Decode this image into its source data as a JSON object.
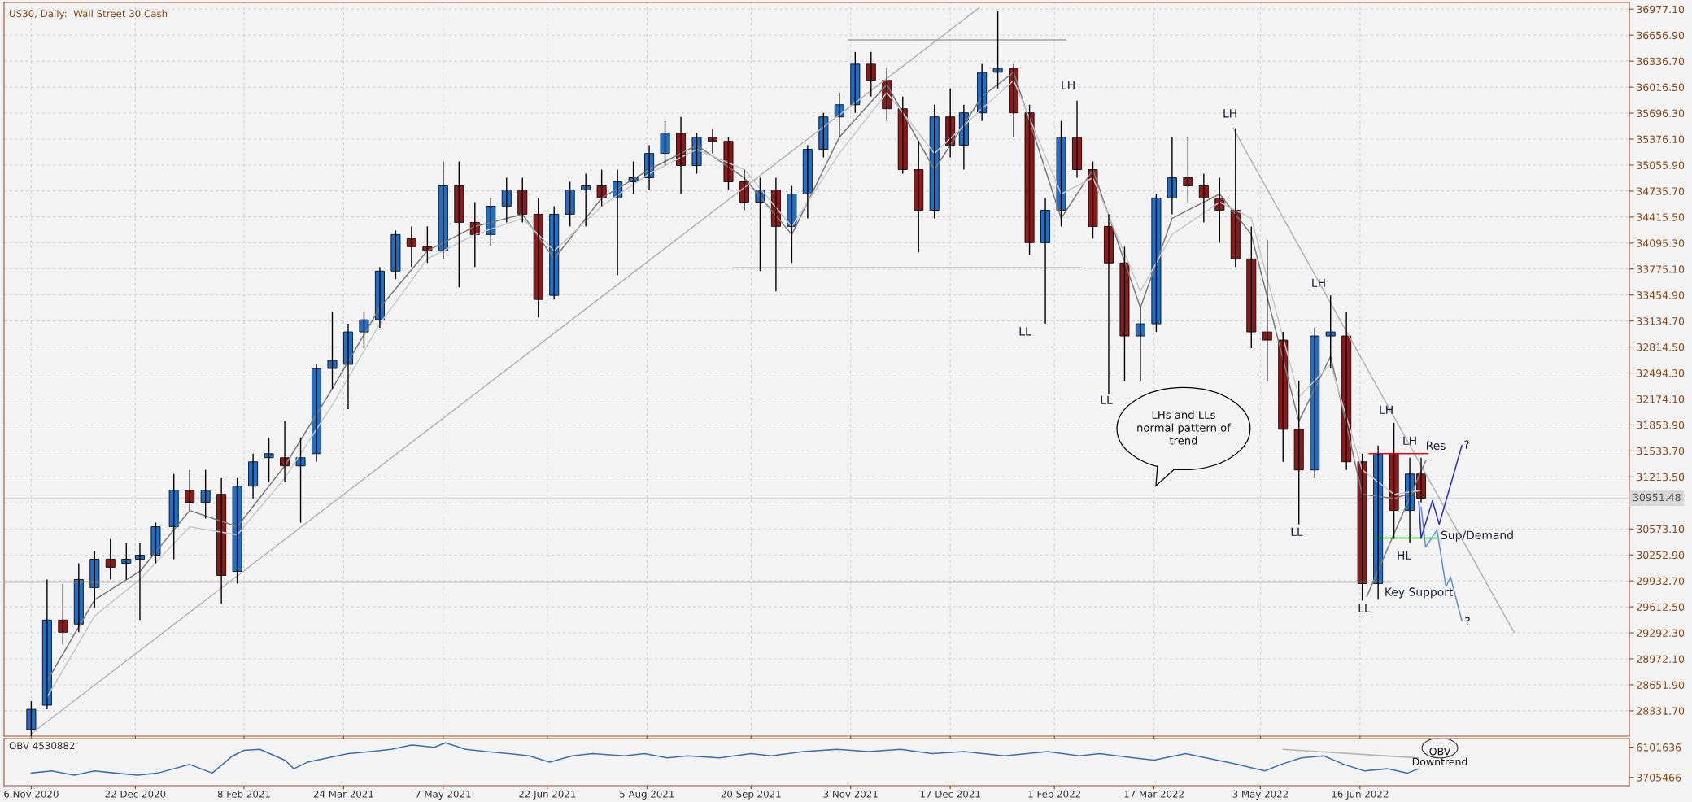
{
  "chart_data": [
    {
      "type": "candlestick",
      "title": "US30, Daily:  Wall Street 30 Cash",
      "xlim": [
        "2020-10-25",
        "2022-10-13"
      ],
      "xticks": [
        {
          "value": "2020-11-06",
          "label": null
        },
        {
          "value": "2020-12-22",
          "label": null
        },
        {
          "value": "2021-02-08",
          "label": null
        },
        {
          "value": "2021-03-24",
          "label": null
        },
        {
          "value": "2021-05-07",
          "label": null
        },
        {
          "value": "2021-06-22",
          "label": null
        },
        {
          "value": "2021-08-05",
          "label": null
        },
        {
          "value": "2021-09-20",
          "label": null
        },
        {
          "value": "2021-11-03",
          "label": null
        },
        {
          "value": "2021-12-17",
          "label": null
        },
        {
          "value": "2022-02-01",
          "label": null
        },
        {
          "value": "2022-03-17",
          "label": null
        },
        {
          "value": "2022-05-03",
          "label": null
        },
        {
          "value": "2022-06-16",
          "label": null
        }
      ],
      "ylim": [
        28020,
        37060
      ],
      "yticks": [
        {
          "value": 28331.7,
          "label": "28331.70"
        },
        {
          "value": 28651.9,
          "label": "28651.90"
        },
        {
          "value": 28972.1,
          "label": "28972.10"
        },
        {
          "value": 29292.3,
          "label": "29292.30"
        },
        {
          "value": 29612.5,
          "label": "29612.50"
        },
        {
          "value": 29932.7,
          "label": "29932.70"
        },
        {
          "value": 30252.9,
          "label": "30252.90"
        },
        {
          "value": 30573.1,
          "label": "30573.10"
        },
        {
          "value": 30893.3,
          "label": null
        },
        {
          "value": 31213.5,
          "label": "31213.50"
        },
        {
          "value": 31533.7,
          "label": "31533.70"
        },
        {
          "value": 31853.9,
          "label": "31853.90"
        },
        {
          "value": 32174.1,
          "label": "32174.10"
        },
        {
          "value": 32494.3,
          "label": "32494.30"
        },
        {
          "value": 32814.5,
          "label": "32814.50"
        },
        {
          "value": 33134.7,
          "label": "33134.70"
        },
        {
          "value": 33454.9,
          "label": "33454.90"
        },
        {
          "value": 33775.1,
          "label": "33775.10"
        },
        {
          "value": 34095.3,
          "label": "34095.30"
        },
        {
          "value": 34415.5,
          "label": "34415.50"
        },
        {
          "value": 34735.7,
          "label": "34735.70"
        },
        {
          "value": 35055.9,
          "label": "35055.90"
        },
        {
          "value": 35376.1,
          "label": "35376.10"
        },
        {
          "value": 35696.3,
          "label": "35696.30"
        },
        {
          "value": 36016.5,
          "label": "36016.50"
        },
        {
          "value": 36336.7,
          "label": "36336.70"
        },
        {
          "value": 36656.9,
          "label": "36656.90"
        },
        {
          "value": 36977.1,
          "label": "36977.10"
        }
      ],
      "tick_labels": "y",
      "grid": true,
      "ref_lines": [
        {
          "axis": "y",
          "value": 30951.48,
          "label": "30951.48",
          "color": "#d8d8d8"
        }
      ],
      "series": [
        {
          "type": "line",
          "color": "#7a7a7a",
          "x": [
            "2020-11-13",
            "2020-12-04",
            "2020-12-24",
            "2021-01-15",
            "2021-02-05",
            "2021-02-26",
            "2021-03-19",
            "2021-04-09",
            "2021-04-30",
            "2021-05-21",
            "2021-06-11",
            "2021-06-25",
            "2021-07-16",
            "2021-08-06",
            "2021-08-27",
            "2021-09-17",
            "2021-10-08",
            "2021-10-29",
            "2021-11-19",
            "2021-12-10",
            "2021-12-31",
            "2022-01-14",
            "2022-02-04",
            "2022-02-18",
            "2022-03-11",
            "2022-03-25",
            "2022-04-15",
            "2022-04-29",
            "2022-05-20",
            "2022-06-03",
            "2022-06-17",
            "2022-07-01",
            "2022-07-13"
          ],
          "values": [
            28700,
            29700,
            30050,
            30800,
            30600,
            31350,
            32300,
            33300,
            34000,
            34300,
            34450,
            33900,
            34650,
            35000,
            35300,
            34900,
            34200,
            35400,
            36050,
            35000,
            35900,
            36200,
            34400,
            35000,
            33300,
            34400,
            34700,
            34200,
            31900,
            32700,
            31000,
            30950,
            31050
          ]
        },
        {
          "type": "line",
          "color": "#c8c8c8",
          "x": [
            "2020-11-13",
            "2020-12-04",
            "2020-12-24",
            "2021-01-15",
            "2021-02-05",
            "2021-02-26",
            "2021-03-19",
            "2021-04-09",
            "2021-04-30",
            "2021-05-21",
            "2021-06-11",
            "2021-06-25",
            "2021-07-16",
            "2021-08-06",
            "2021-08-27",
            "2021-09-17",
            "2021-10-08",
            "2021-10-29",
            "2021-11-19",
            "2021-12-10",
            "2021-12-31",
            "2022-01-14",
            "2022-02-04",
            "2022-02-18",
            "2022-03-11",
            "2022-03-25",
            "2022-04-15",
            "2022-04-29",
            "2022-05-20",
            "2022-06-03",
            "2022-06-17",
            "2022-07-01",
            "2022-07-13"
          ],
          "values": [
            28500,
            29500,
            29950,
            30600,
            30500,
            31200,
            32100,
            33100,
            33900,
            34200,
            34400,
            34000,
            34550,
            34950,
            35250,
            35000,
            34300,
            35200,
            35950,
            35200,
            35750,
            36100,
            34700,
            34900,
            33500,
            34200,
            34600,
            34400,
            32200,
            32600,
            31300,
            31000,
            31050
          ]
        },
        {
          "type": "line",
          "color": "#b4b4b4",
          "x": [
            "2020-11-06",
            "2021-12-30"
          ],
          "values": [
            28050,
            37000
          ]
        },
        {
          "type": "line",
          "color": "#a0a0a0",
          "x": [
            "2021-11-02",
            "2022-02-06"
          ],
          "values": [
            36600,
            36600
          ]
        },
        {
          "type": "line",
          "color": "#a0a0a0",
          "x": [
            "2021-09-12",
            "2022-02-13"
          ],
          "values": [
            33790,
            33790
          ]
        },
        {
          "type": "line",
          "color": "#909090",
          "x": [
            "2020-10-25",
            "2022-06-30"
          ],
          "values": [
            29920,
            29920
          ]
        },
        {
          "type": "line",
          "color": "#b4b4b4",
          "x": [
            "2022-04-21",
            "2022-08-23"
          ],
          "values": [
            35510,
            29300
          ]
        },
        {
          "type": "line",
          "color": "#808080",
          "x": [
            "2022-06-19",
            "2022-07-15"
          ],
          "values": [
            29740,
            31410
          ]
        },
        {
          "type": "line",
          "color": "#ff0000",
          "x": [
            "2022-06-20",
            "2022-07-16"
          ],
          "values": [
            31500,
            31500
          ]
        },
        {
          "type": "line",
          "color": "#00b000",
          "x": [
            "2022-06-23",
            "2022-07-20"
          ],
          "values": [
            30460,
            30460
          ]
        },
        {
          "type": "line",
          "color": "#2a2ad0",
          "x": [
            "2022-07-12",
            "2022-07-13",
            "2022-07-18",
            "2022-07-21",
            "2022-07-31"
          ],
          "values": [
            30910,
            30460,
            30920,
            30630,
            31600
          ]
        },
        {
          "type": "line",
          "color": "#5a8fd6",
          "x": [
            "2022-07-13",
            "2022-07-15",
            "2022-07-20",
            "2022-07-24",
            "2022-07-26",
            "2022-07-31"
          ],
          "values": [
            30840,
            30350,
            30560,
            29860,
            29980,
            29440
          ]
        },
        {
          "color": "#1f6fc6",
          "x": [
            "2020-11-06",
            "2020-11-13",
            "2020-11-27",
            "2020-12-04",
            "2020-12-18",
            "2020-12-24",
            "2020-12-31",
            "2021-01-08",
            "2021-01-22",
            "2021-02-05",
            "2021-02-12",
            "2021-02-19",
            "2021-03-05",
            "2021-03-12",
            "2021-03-19",
            "2021-03-26",
            "2021-04-02",
            "2021-04-09",
            "2021-04-16",
            "2021-05-07",
            "2021-05-28",
            "2021-06-04",
            "2021-06-25",
            "2021-07-02",
            "2021-07-09",
            "2021-07-23",
            "2021-07-30",
            "2021-08-06",
            "2021-08-13",
            "2021-08-27",
            "2021-09-24",
            "2021-10-08",
            "2021-10-15",
            "2021-10-22",
            "2021-10-29",
            "2021-11-05",
            "2021-12-10",
            "2021-12-23",
            "2021-12-31",
            "2022-01-07",
            "2022-01-28",
            "2022-02-04",
            "2022-03-11",
            "2022-03-18",
            "2022-03-25",
            "2022-05-27",
            "2022-06-03",
            "2022-06-24",
            "2022-07-08"
          ],
          "ohlc": [
            [
              28100,
              28450,
              28000,
              28350
            ],
            [
              28400,
              29950,
              28350,
              29450
            ],
            [
              29400,
              30150,
              29300,
              29950
            ],
            [
              29850,
              30300,
              29600,
              30200
            ],
            [
              30150,
              30400,
              29950,
              30200
            ],
            [
              30200,
              30400,
              29450,
              30250
            ],
            [
              30250,
              30650,
              30150,
              30600
            ],
            [
              30600,
              31250,
              30200,
              31050
            ],
            [
              30900,
              31300,
              30700,
              31050
            ],
            [
              30050,
              31200,
              29900,
              31100
            ],
            [
              31100,
              31500,
              30950,
              31400
            ],
            [
              31450,
              31700,
              31150,
              31500
            ],
            [
              31350,
              31700,
              30650,
              31450
            ],
            [
              31500,
              32600,
              31400,
              32550
            ],
            [
              32550,
              33250,
              32300,
              32650
            ],
            [
              32600,
              33100,
              32050,
              33000
            ],
            [
              33000,
              33250,
              32800,
              33150
            ],
            [
              33150,
              33800,
              33050,
              33750
            ],
            [
              33750,
              34250,
              33650,
              34200
            ],
            [
              34000,
              35100,
              33900,
              34800
            ],
            [
              34200,
              34650,
              34050,
              34550
            ],
            [
              34550,
              34900,
              34350,
              34750
            ],
            [
              33450,
              34550,
              33400,
              34450
            ],
            [
              34450,
              34850,
              34300,
              34750
            ],
            [
              34750,
              34950,
              34300,
              34800
            ],
            [
              34650,
              35000,
              33700,
              34850
            ],
            [
              34850,
              35100,
              34700,
              34900
            ],
            [
              34900,
              35300,
              34750,
              35200
            ],
            [
              35200,
              35600,
              35050,
              35450
            ],
            [
              35050,
              35450,
              34950,
              35400
            ],
            [
              34600,
              34900,
              33750,
              34750
            ],
            [
              34300,
              34800,
              33850,
              34700
            ],
            [
              34700,
              35300,
              34400,
              35250
            ],
            [
              35250,
              35700,
              35150,
              35650
            ],
            [
              35650,
              35950,
              35400,
              35800
            ],
            [
              35800,
              36450,
              35700,
              36300
            ],
            [
              34500,
              35800,
              34400,
              35650
            ],
            [
              35300,
              35800,
              35000,
              35700
            ],
            [
              35700,
              36300,
              35600,
              36200
            ],
            [
              36200,
              36950,
              36000,
              36250
            ],
            [
              34100,
              34650,
              33100,
              34500
            ],
            [
              34500,
              35600,
              34300,
              35400
            ],
            [
              32950,
              33300,
              32400,
              33100
            ],
            [
              33100,
              34700,
              33000,
              34650
            ],
            [
              34650,
              35400,
              34450,
              34900
            ],
            [
              31300,
              33050,
              31200,
              32950
            ],
            [
              32950,
              33450,
              32550,
              33000
            ],
            [
              29900,
              31600,
              29700,
              31500
            ],
            [
              30800,
              31450,
              30400,
              31250
            ]
          ]
        },
        {
          "color": "#8b1a1a",
          "x": [
            "2020-11-20",
            "2020-12-11",
            "2021-01-15",
            "2021-01-29",
            "2021-02-26",
            "2021-04-23",
            "2021-04-30",
            "2021-05-14",
            "2021-05-21",
            "2021-06-11",
            "2021-06-18",
            "2021-07-16",
            "2021-08-20",
            "2021-09-03",
            "2021-09-10",
            "2021-09-17",
            "2021-10-01",
            "2021-11-12",
            "2021-11-19",
            "2021-11-26",
            "2021-12-03",
            "2021-12-17",
            "2022-01-14",
            "2022-01-21",
            "2022-02-11",
            "2022-02-18",
            "2022-02-25",
            "2022-03-04",
            "2022-04-01",
            "2022-04-08",
            "2022-04-15",
            "2022-04-22",
            "2022-04-29",
            "2022-05-06",
            "2022-05-13",
            "2022-05-20",
            "2022-06-10",
            "2022-06-17",
            "2022-07-01",
            "2022-07-13"
          ],
          "ohlc": [
            [
              29450,
              29900,
              29150,
              29300
            ],
            [
              30200,
              30450,
              29950,
              30100
            ],
            [
              31050,
              31300,
              30800,
              30900
            ],
            [
              31000,
              31200,
              29650,
              30000
            ],
            [
              31450,
              31900,
              31150,
              31350
            ],
            [
              34150,
              34300,
              33800,
              34050
            ],
            [
              34050,
              34300,
              33850,
              34000
            ],
            [
              34800,
              35100,
              33550,
              34350
            ],
            [
              34350,
              34600,
              33800,
              34200
            ],
            [
              34750,
              34900,
              34350,
              34450
            ],
            [
              34450,
              34650,
              33180,
              33400
            ],
            [
              34800,
              35000,
              34550,
              34650
            ],
            [
              35450,
              35650,
              34700,
              35050
            ],
            [
              35400,
              35500,
              35200,
              35350
            ],
            [
              35350,
              35400,
              34750,
              34850
            ],
            [
              34850,
              35000,
              34500,
              34600
            ],
            [
              34750,
              34900,
              33500,
              34300
            ],
            [
              36300,
              36450,
              35900,
              36100
            ],
            [
              36100,
              36250,
              35600,
              35750
            ],
            [
              35750,
              35900,
              34950,
              35000
            ],
            [
              35000,
              35350,
              33980,
              34500
            ],
            [
              35650,
              36000,
              35150,
              35300
            ],
            [
              36250,
              36300,
              35400,
              35700
            ],
            [
              35700,
              35800,
              33950,
              34100
            ],
            [
              35400,
              35850,
              34900,
              35000
            ],
            [
              35000,
              35100,
              34150,
              34300
            ],
            [
              34300,
              34450,
              32230,
              33850
            ],
            [
              33850,
              34050,
              32400,
              32950
            ],
            [
              34900,
              35400,
              34600,
              34800
            ],
            [
              34800,
              34950,
              34350,
              34650
            ],
            [
              34650,
              34900,
              34100,
              34500
            ],
            [
              34500,
              35510,
              33800,
              33900
            ],
            [
              33900,
              34300,
              32800,
              33000
            ],
            [
              33000,
              34130,
              32400,
              32900
            ],
            [
              32900,
              33000,
              31400,
              31800
            ],
            [
              31800,
              32400,
              30630,
              31300
            ],
            [
              32950,
              33250,
              31300,
              31400
            ],
            [
              31400,
              31500,
              29690,
              29900
            ],
            [
              31500,
              31880,
              30450,
              30800
            ],
            [
              31250,
              31450,
              30900,
              30951.48
            ]
          ]
        }
      ],
      "annotations": [
        "LHs and LLs\nnormal pattern of\ntrend",
        "LL",
        "LH",
        "LL",
        "LH",
        "LH",
        "LL",
        "LL",
        "LH",
        "LH",
        "HL",
        "Res",
        "Sup/Demand",
        "Key Support",
        "?",
        "?"
      ]
    },
    {
      "type": "line",
      "title": "OBV 4530882",
      "xlim": [
        "2020-10-25",
        "2022-10-13"
      ],
      "xticks": [
        {
          "value": "2020-11-06",
          "label": "6 Nov 2020"
        },
        {
          "value": "2020-12-22",
          "label": "22 Dec 2020"
        },
        {
          "value": "2021-02-08",
          "label": "8 Feb 2021"
        },
        {
          "value": "2021-03-24",
          "label": "24 Mar 2021"
        },
        {
          "value": "2021-05-07",
          "label": "7 May 2021"
        },
        {
          "value": "2021-06-22",
          "label": "22 Jun 2021"
        },
        {
          "value": "2021-08-05",
          "label": "5 Aug 2021"
        },
        {
          "value": "2021-09-20",
          "label": "20 Sep 2021"
        },
        {
          "value": "2021-11-03",
          "label": "3 Nov 2021"
        },
        {
          "value": "2021-12-17",
          "label": "17 Dec 2021"
        },
        {
          "value": "2022-02-01",
          "label": "1 Feb 2022"
        },
        {
          "value": "2022-03-17",
          "label": "17 Mar 2022"
        },
        {
          "value": "2022-05-03",
          "label": "3 May 2022"
        },
        {
          "value": "2022-06-16",
          "label": "16 Jun 2022"
        }
      ],
      "ylim": [
        3040000,
        6790000
      ],
      "yticks": [
        6101636,
        3705466
      ],
      "series": [
        {
          "color": "#3a6fb0",
          "x": [
            "2020-11-06",
            "2020-11-15",
            "2020-11-25",
            "2020-12-04",
            "2020-12-13",
            "2020-12-23",
            "2021-01-01",
            "2021-01-15",
            "2021-01-25",
            "2021-02-03",
            "2021-02-08",
            "2021-02-15",
            "2021-02-26",
            "2021-03-02",
            "2021-03-08",
            "2021-03-17",
            "2021-03-26",
            "2021-04-05",
            "2021-04-14",
            "2021-04-23",
            "2021-05-03",
            "2021-05-08",
            "2021-05-17",
            "2021-05-26",
            "2021-06-05",
            "2021-06-14",
            "2021-06-23",
            "2021-07-03",
            "2021-07-12",
            "2021-07-26",
            "2021-08-04",
            "2021-08-14",
            "2021-08-23",
            "2021-09-06",
            "2021-09-20",
            "2021-09-29",
            "2021-10-13",
            "2021-10-28",
            "2021-11-11",
            "2021-11-25",
            "2021-12-09",
            "2021-12-23",
            "2022-01-10",
            "2022-01-29",
            "2022-02-12",
            "2022-02-21",
            "2022-03-08",
            "2022-03-17",
            "2022-03-31",
            "2022-04-09",
            "2022-04-23",
            "2022-05-05",
            "2022-05-12",
            "2022-05-21",
            "2022-05-31",
            "2022-06-09",
            "2022-06-18",
            "2022-06-28",
            "2022-07-07",
            "2022-07-12"
          ],
          "values": [
            4050000,
            4220000,
            3880000,
            4220000,
            4050000,
            3880000,
            4050000,
            4730000,
            4050000,
            5420000,
            5850000,
            5930000,
            5080000,
            4390000,
            4910000,
            5250000,
            5590000,
            5760000,
            5930000,
            6280000,
            6100000,
            6450000,
            5930000,
            5760000,
            5590000,
            5420000,
            4910000,
            5420000,
            5590000,
            5420000,
            5590000,
            5250000,
            5420000,
            5250000,
            5590000,
            5420000,
            5760000,
            5930000,
            5760000,
            5930000,
            5590000,
            5760000,
            5420000,
            5760000,
            5420000,
            5590000,
            5250000,
            5080000,
            5590000,
            5250000,
            4730000,
            4220000,
            4730000,
            5250000,
            5420000,
            4730000,
            4220000,
            4390000,
            4050000,
            4390000
          ]
        },
        {
          "color": "#b4b4b4",
          "x": [
            "2022-05-13",
            "2022-07-12"
          ],
          "values": [
            5930000,
            5250000
          ]
        }
      ],
      "annotations": [
        "OBV\nDowntrend"
      ]
    }
  ]
}
